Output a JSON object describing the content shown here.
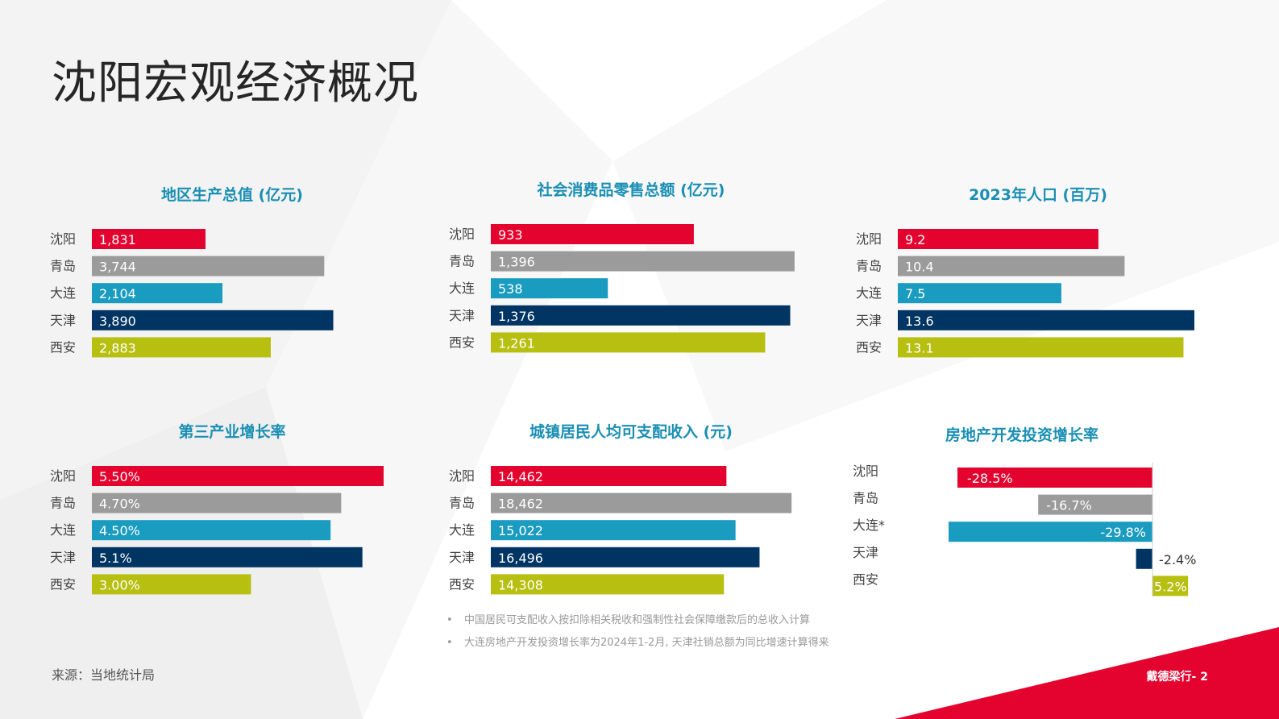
{
  "page": {
    "title": "沈阳宏观经济概况",
    "source": "来源：当地统计局",
    "notes": [
      "中国居民可支配收入按扣除相关税收和强制性社会保障缴款后的总收入计算",
      "大连房地产开发投资增长率为2024年1-2月, 天津社销总额为同比增速计算得来"
    ],
    "brand": "戴德梁行- 2",
    "accent": "#e4032e"
  },
  "series_colors": [
    "#e4032e",
    "#9b9b9b",
    "#1a9bc0",
    "#003462",
    "#b7bf10"
  ],
  "chart_data": [
    {
      "type": "bar",
      "title": "地区生产总值 (亿元)",
      "categories": [
        "沈阳",
        "青岛",
        "大连",
        "天津",
        "西安"
      ],
      "values": [
        1831,
        3744,
        2104,
        3890,
        2883
      ],
      "labels": [
        "1,831",
        "3,744",
        "2,104",
        "3,890",
        "2,883"
      ],
      "xlim": [
        0,
        4000
      ]
    },
    {
      "type": "bar",
      "title": "社会消费品零售总额 (亿元)",
      "categories": [
        "沈阳",
        "青岛",
        "大连",
        "天津",
        "西安"
      ],
      "values": [
        933,
        1396,
        538,
        1376,
        1261
      ],
      "labels": [
        "933",
        "1,396",
        "538",
        "1,376",
        "1,261"
      ],
      "xlim": [
        0,
        1400
      ]
    },
    {
      "type": "bar",
      "title": "2023年人口 (百万)",
      "categories": [
        "沈阳",
        "青岛",
        "大连",
        "天津",
        "西安"
      ],
      "values": [
        9.2,
        10.4,
        7.5,
        13.6,
        13.1
      ],
      "labels": [
        "9.2",
        "10.4",
        "7.5",
        "13.6",
        "13.1"
      ],
      "xlim": [
        0,
        13.6
      ]
    },
    {
      "type": "bar",
      "title": "第三产业增长率",
      "categories": [
        "沈阳",
        "青岛",
        "大连",
        "天津",
        "西安"
      ],
      "values": [
        5.5,
        4.7,
        4.5,
        5.1,
        3.0
      ],
      "labels": [
        "5.50%",
        "4.70%",
        "4.50%",
        "5.1%",
        "3.00%"
      ],
      "xlim": [
        0,
        5.5
      ]
    },
    {
      "type": "bar",
      "title": "城镇居民人均可支配收入 (元)",
      "categories": [
        "沈阳",
        "青岛",
        "大连",
        "天津",
        "西安"
      ],
      "values": [
        14462,
        18462,
        15022,
        16496,
        14308
      ],
      "labels": [
        "14,462",
        "18,462",
        "15,022",
        "16,496",
        "14,308"
      ],
      "xlim": [
        0,
        18600
      ]
    },
    {
      "type": "bar",
      "title": "房地产开发投资增长率",
      "categories": [
        "沈阳",
        "青岛",
        "大连*",
        "天津",
        "西安"
      ],
      "values": [
        -28.5,
        -16.7,
        -29.8,
        -2.4,
        5.2
      ],
      "labels": [
        "-28.5%",
        "-16.7%",
        "-29.8%",
        "-2.4%",
        "5.2%"
      ],
      "xlim": [
        -29.8,
        5.2
      ]
    }
  ]
}
